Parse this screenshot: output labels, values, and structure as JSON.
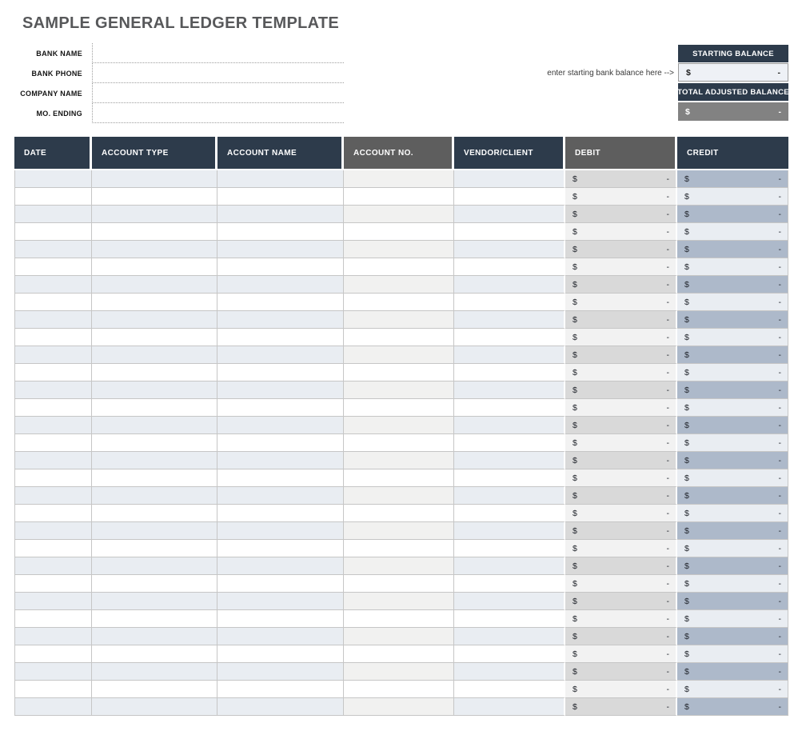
{
  "title": "SAMPLE GENERAL LEDGER TEMPLATE",
  "form": {
    "fields": [
      {
        "label": "BANK NAME",
        "value": ""
      },
      {
        "label": "BANK PHONE",
        "value": ""
      },
      {
        "label": "COMPANY NAME",
        "value": ""
      },
      {
        "label": "MO. ENDING",
        "value": ""
      }
    ]
  },
  "balances": {
    "starting_header": "STARTING BALANCE",
    "starting_currency": "$",
    "starting_amount": "-",
    "note": "enter starting bank balance here -->",
    "total_header": "TOTAL ADJUSTED BALANCE",
    "total_currency": "$",
    "total_amount": "-"
  },
  "table": {
    "columns": [
      {
        "label": "DATE",
        "theme": "navy",
        "key": "date"
      },
      {
        "label": "ACCOUNT TYPE",
        "theme": "navy",
        "key": "account-type"
      },
      {
        "label": "ACCOUNT NAME",
        "theme": "navy",
        "key": "account-name"
      },
      {
        "label": "ACCOUNT NO.",
        "theme": "gray",
        "key": "account-no"
      },
      {
        "label": "VENDOR/CLIENT",
        "theme": "navy",
        "key": "vendor-client"
      },
      {
        "label": "DEBIT",
        "theme": "gray",
        "key": "debit"
      },
      {
        "label": "CREDIT",
        "theme": "navy",
        "key": "credit"
      }
    ],
    "row_count": 31,
    "empty_money": {
      "currency": "$",
      "amount": "-"
    }
  },
  "colors": {
    "navy": "#2d3b4b",
    "header_gray": "#5e5e5e",
    "row_blue": "#e9edf2",
    "row_blue_dark": "#adb9ca",
    "row_gray": "#d9d9d9",
    "row_gray_light": "#f2f2f2",
    "row_neutral": "#f1f1f0",
    "total_row_gray": "#828282",
    "grid_line": "#c6c6c6"
  }
}
